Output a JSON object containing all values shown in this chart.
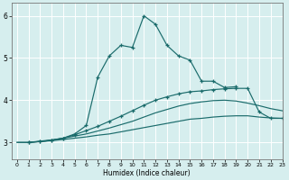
{
  "xlabel": "Humidex (Indice chaleur)",
  "bg_color": "#d6eeee",
  "grid_color": "#ffffff",
  "line_color": "#1a6b6b",
  "xlim": [
    -0.5,
    23
  ],
  "ylim": [
    2.6,
    6.3
  ],
  "line1_x": [
    0,
    1,
    2,
    3,
    4,
    5,
    6,
    7,
    8,
    9,
    10,
    11,
    12,
    13,
    14,
    15,
    16,
    17,
    18,
    19,
    20,
    21,
    22,
    23
  ],
  "line1_y": [
    3.0,
    3.0,
    3.02,
    3.04,
    3.07,
    3.1,
    3.13,
    3.17,
    3.2,
    3.25,
    3.3,
    3.35,
    3.4,
    3.45,
    3.5,
    3.55,
    3.57,
    3.6,
    3.62,
    3.63,
    3.63,
    3.6,
    3.58,
    3.57
  ],
  "line2_x": [
    0,
    1,
    2,
    3,
    4,
    5,
    6,
    7,
    8,
    9,
    10,
    11,
    12,
    13,
    14,
    15,
    16,
    17,
    18,
    19,
    20,
    21,
    22,
    23
  ],
  "line2_y": [
    3.0,
    3.0,
    3.03,
    3.06,
    3.1,
    3.15,
    3.2,
    3.27,
    3.34,
    3.42,
    3.5,
    3.6,
    3.7,
    3.78,
    3.86,
    3.92,
    3.96,
    3.99,
    4.0,
    3.98,
    3.93,
    3.87,
    3.8,
    3.75
  ],
  "line3_x": [
    1,
    2,
    3,
    4,
    5,
    6,
    7,
    8,
    9,
    10,
    11,
    12,
    13,
    14,
    15,
    16,
    17,
    18,
    19
  ],
  "line3_y": [
    3.0,
    3.02,
    3.05,
    3.1,
    3.2,
    3.4,
    4.55,
    5.05,
    5.3,
    5.25,
    6.0,
    5.8,
    5.3,
    5.05,
    4.95,
    4.45,
    4.45,
    4.3,
    4.32
  ],
  "line4_x": [
    1,
    2,
    3,
    4,
    5,
    6,
    7,
    8,
    9,
    10,
    11,
    12,
    13,
    14,
    15,
    16,
    17,
    18,
    19,
    20,
    21,
    22,
    23
  ],
  "line4_y": [
    3.0,
    3.02,
    3.05,
    3.1,
    3.18,
    3.28,
    3.38,
    3.5,
    3.62,
    3.75,
    3.88,
    4.0,
    4.08,
    4.15,
    4.2,
    4.22,
    4.25,
    4.27,
    4.28,
    4.28,
    3.72,
    3.57,
    3.57
  ]
}
